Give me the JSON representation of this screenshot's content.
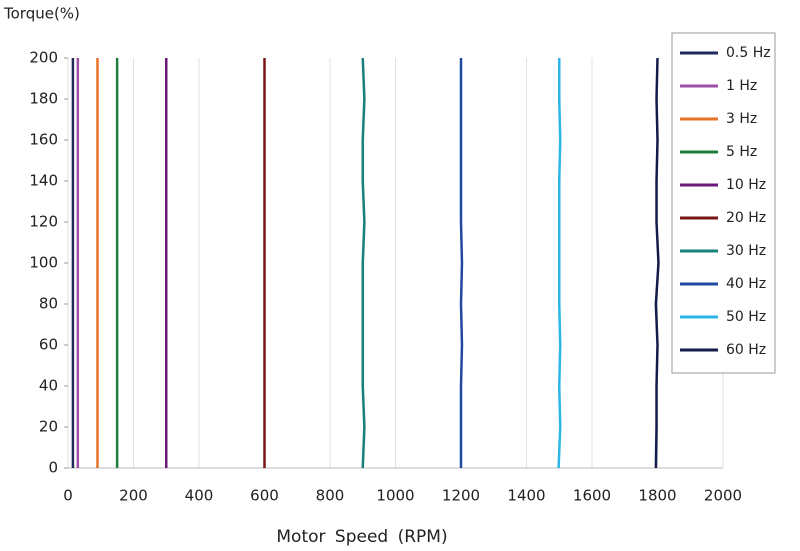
{
  "chart_data": {
    "type": "line",
    "y_label": "Torque(%)",
    "x_label": "Motor Speed (RPM)",
    "xlim": [
      0,
      2000
    ],
    "xticks": [
      0,
      200,
      400,
      600,
      800,
      1000,
      1200,
      1400,
      1600,
      1800,
      2000
    ],
    "ylim": [
      0,
      200
    ],
    "yticks": [
      0,
      20,
      40,
      60,
      80,
      100,
      120,
      140,
      160,
      180,
      200
    ],
    "grid": "x",
    "legend": "right",
    "series": [
      {
        "name": "0.5 Hz",
        "color": "#1f2a5c",
        "x": [
          15,
          15,
          15,
          15,
          15,
          15,
          15,
          15,
          15,
          15,
          15
        ],
        "values": [
          0,
          20,
          40,
          60,
          80,
          100,
          120,
          140,
          160,
          180,
          200
        ]
      },
      {
        "name": "1 Hz",
        "color": "#a04fa8",
        "x": [
          30,
          30,
          30,
          30,
          30,
          30,
          30,
          30,
          30,
          30,
          30
        ],
        "values": [
          0,
          20,
          40,
          60,
          80,
          100,
          120,
          140,
          160,
          180,
          200
        ]
      },
      {
        "name": "3 Hz",
        "color": "#e8722a",
        "x": [
          90,
          90,
          90,
          90,
          90,
          90,
          90,
          90,
          90,
          90,
          90
        ],
        "values": [
          0,
          20,
          40,
          60,
          80,
          100,
          120,
          140,
          160,
          180,
          200
        ]
      },
      {
        "name": "5 Hz",
        "color": "#1e7d3a",
        "x": [
          150,
          150,
          150,
          150,
          150,
          150,
          150,
          150,
          150,
          150,
          150
        ],
        "values": [
          0,
          20,
          40,
          60,
          80,
          100,
          120,
          140,
          160,
          180,
          200
        ]
      },
      {
        "name": "10 Hz",
        "color": "#6a1a7a",
        "x": [
          300,
          300,
          300,
          300,
          300,
          300,
          300,
          300,
          300,
          300,
          300
        ],
        "values": [
          0,
          20,
          40,
          60,
          80,
          100,
          120,
          140,
          160,
          180,
          200
        ]
      },
      {
        "name": "20 Hz",
        "color": "#7a1515",
        "x": [
          600,
          600,
          600,
          600,
          600,
          600,
          600,
          600,
          600,
          600,
          600
        ],
        "values": [
          0,
          20,
          40,
          60,
          80,
          100,
          120,
          140,
          160,
          180,
          200
        ]
      },
      {
        "name": "30 Hz",
        "color": "#17807a",
        "x": [
          900,
          905,
          900,
          900,
          900,
          900,
          905,
          900,
          900,
          905,
          900
        ],
        "values": [
          0,
          20,
          40,
          60,
          80,
          100,
          120,
          140,
          160,
          180,
          200
        ]
      },
      {
        "name": "40 Hz",
        "color": "#1f4aa0",
        "x": [
          1200,
          1200,
          1200,
          1203,
          1200,
          1203,
          1200,
          1200,
          1200,
          1200,
          1200
        ],
        "values": [
          0,
          20,
          40,
          60,
          80,
          100,
          120,
          140,
          160,
          180,
          200
        ]
      },
      {
        "name": "50 Hz",
        "color": "#2bb5e8",
        "x": [
          1498,
          1503,
          1500,
          1503,
          1500,
          1500,
          1500,
          1500,
          1503,
          1500,
          1500
        ],
        "values": [
          0,
          20,
          40,
          60,
          80,
          100,
          120,
          140,
          160,
          180,
          200
        ]
      },
      {
        "name": "60 Hz",
        "color": "#141c4a",
        "x": [
          1795,
          1797,
          1797,
          1800,
          1795,
          1803,
          1797,
          1797,
          1800,
          1797,
          1800
        ],
        "values": [
          0,
          20,
          40,
          60,
          80,
          100,
          120,
          140,
          160,
          180,
          200
        ]
      }
    ]
  }
}
